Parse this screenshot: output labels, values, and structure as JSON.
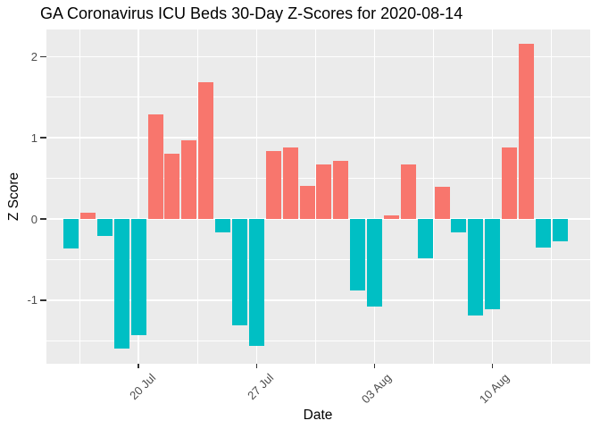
{
  "chart_data": {
    "type": "bar",
    "title": "GA Coronavirus ICU Beds 30-Day Z-Scores for 2020-08-14",
    "xlabel": "Date",
    "ylabel": "Z Score",
    "categories": [
      "2020-07-16",
      "2020-07-17",
      "2020-07-18",
      "2020-07-19",
      "2020-07-20",
      "2020-07-21",
      "2020-07-22",
      "2020-07-23",
      "2020-07-24",
      "2020-07-25",
      "2020-07-26",
      "2020-07-27",
      "2020-07-28",
      "2020-07-29",
      "2020-07-30",
      "2020-07-31",
      "2020-08-01",
      "2020-08-02",
      "2020-08-03",
      "2020-08-04",
      "2020-08-05",
      "2020-08-06",
      "2020-08-07",
      "2020-08-08",
      "2020-08-09",
      "2020-08-10",
      "2020-08-11",
      "2020-08-12",
      "2020-08-13",
      "2020-08-14"
    ],
    "values": [
      -0.36,
      0.08,
      -0.21,
      -1.6,
      -1.43,
      1.29,
      0.8,
      0.97,
      1.68,
      -0.16,
      -1.31,
      -1.56,
      0.84,
      0.88,
      0.41,
      0.67,
      0.72,
      -0.88,
      -1.08,
      0.04,
      0.67,
      -0.48,
      0.4,
      -0.16,
      -1.19,
      -1.11,
      0.88,
      2.16,
      -0.35,
      -0.27
    ],
    "ylim": [
      -1.784,
      2.335
    ],
    "y_major_ticks": [
      2,
      1,
      0,
      -1
    ],
    "y_minor_gridlines": [
      1.5,
      0.5,
      -0.5,
      -1.5
    ],
    "x_ticks": [
      {
        "index": 4,
        "label": "20 Jul"
      },
      {
        "index": 11,
        "label": "27 Jul"
      },
      {
        "index": 18,
        "label": "03 Aug"
      },
      {
        "index": 25,
        "label": "10 Aug"
      }
    ],
    "x_minor_gridline_indices": [
      0.5,
      7.5,
      14.5,
      21.5,
      28.5
    ],
    "colors": {
      "positive_bar": "#F8766D",
      "negative_bar": "#00BFC4",
      "panel_background": "#EBEBEB",
      "gridline": "#FFFFFF",
      "tick_text": "#4D4D4D",
      "tick_mark": "#333333",
      "title_text": "#000000"
    },
    "grid": true,
    "legend": "none"
  }
}
